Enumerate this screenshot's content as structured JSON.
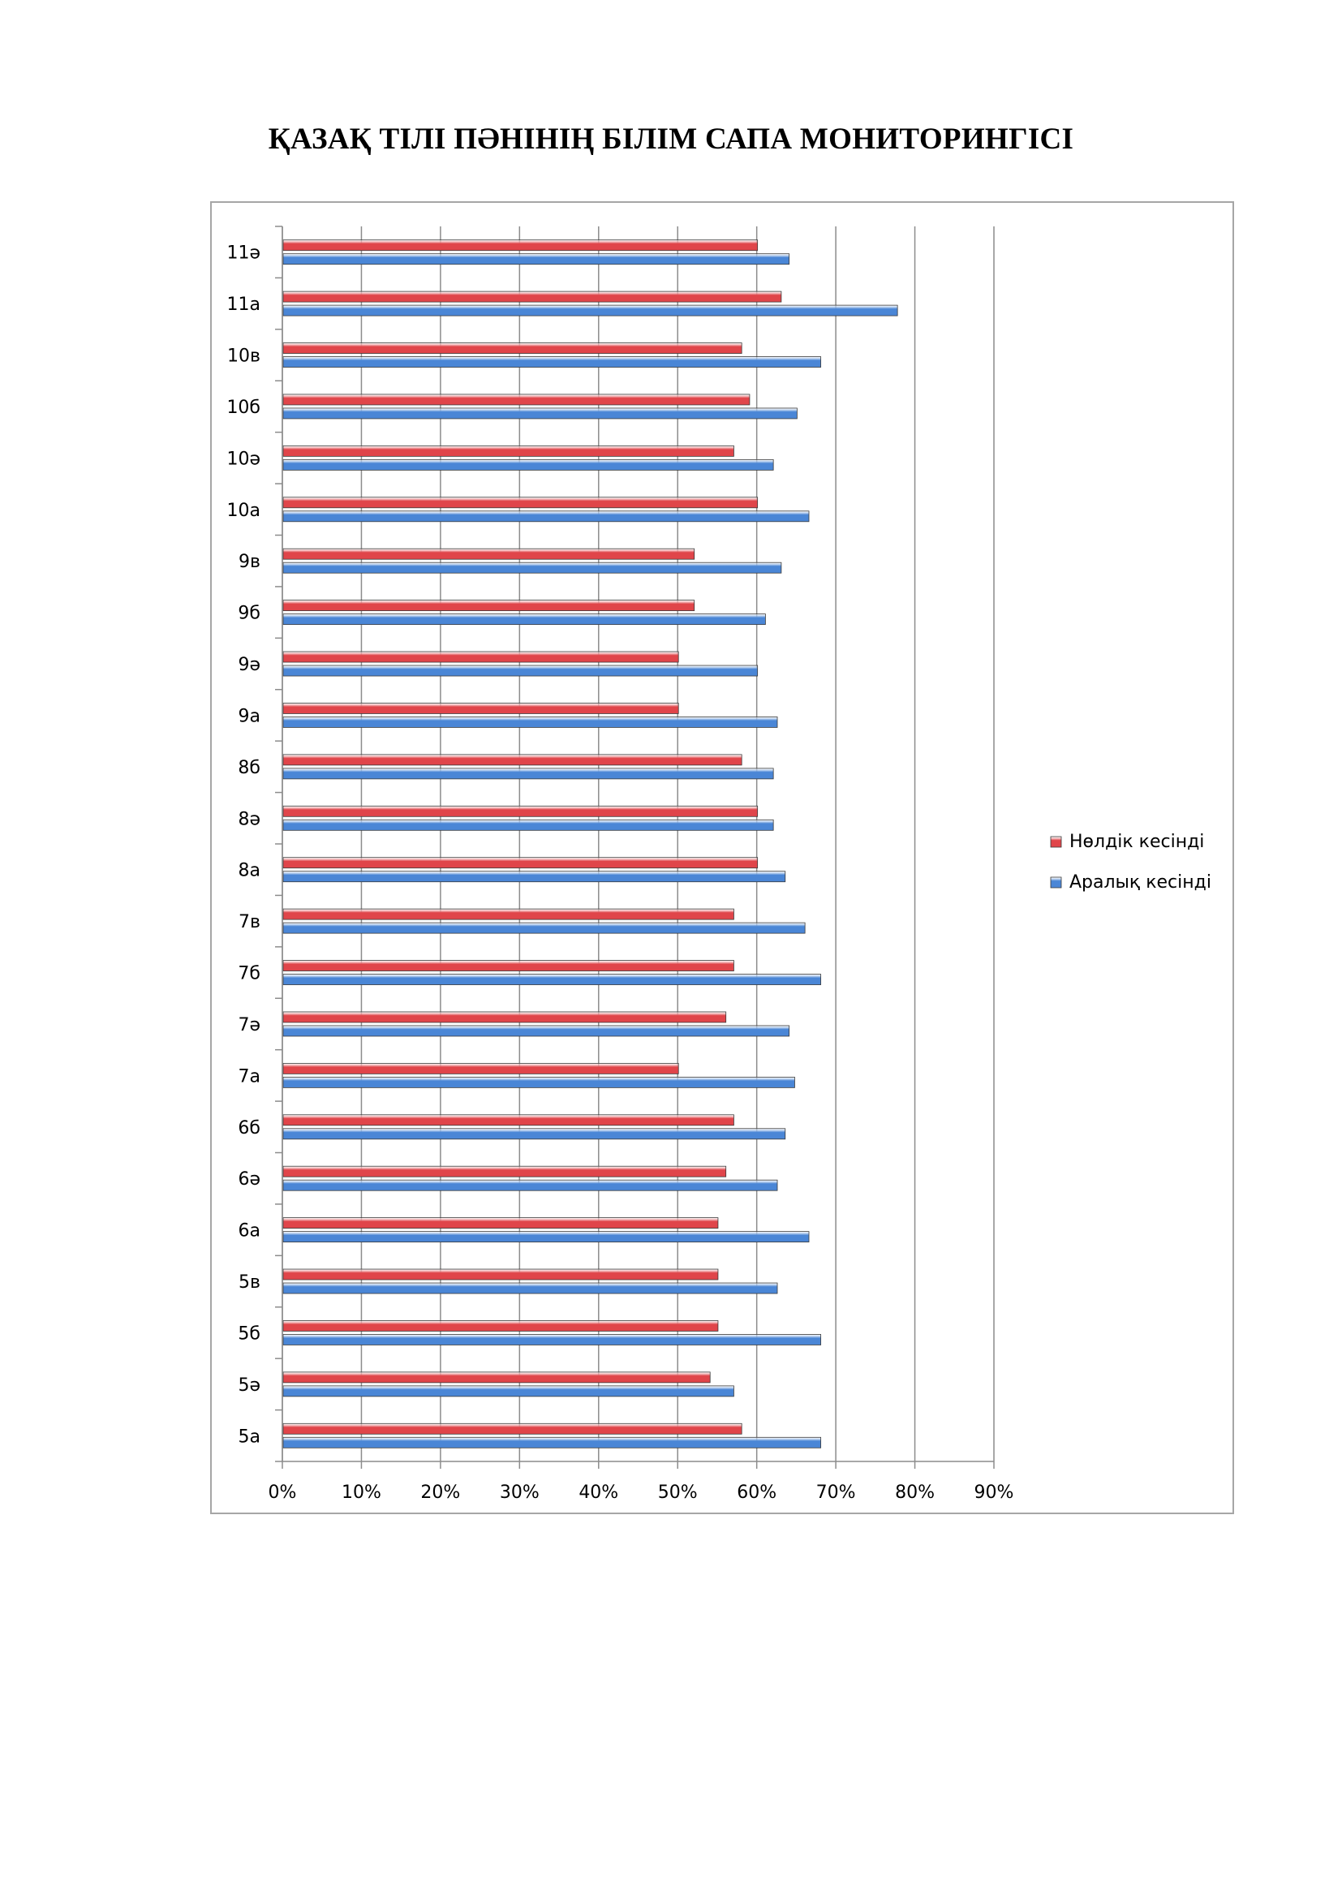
{
  "page": {
    "title": "ҚАЗАҚ ТІЛІ ПӘНІНІҢ БІЛІМ САПА МОНИТОРИНГІСІ"
  },
  "chart_data": {
    "type": "bar",
    "orientation": "horizontal",
    "categories": [
      "5а",
      "5ә",
      "5б",
      "5в",
      "6а",
      "6ә",
      "6б",
      "7а",
      "7ә",
      "7б",
      "7в",
      "8а",
      "8ә",
      "8б",
      "9а",
      "9ә",
      "9б",
      "9в",
      "10а",
      "10ә",
      "10б",
      "10в",
      "11а",
      "11ә"
    ],
    "series": [
      {
        "name": "Нөлдік кесінді",
        "color": "#e0454a",
        "values": [
          58,
          54,
          55,
          55,
          55,
          56,
          57,
          50,
          56,
          57,
          57,
          60,
          60,
          58,
          50,
          50,
          52,
          52,
          60,
          57,
          59,
          58,
          63,
          60
        ]
      },
      {
        "name": "Аралық кесінді",
        "color": "#4a86d6",
        "values": [
          68,
          57,
          68,
          62.5,
          66.5,
          62.5,
          63.5,
          64.7,
          64,
          68,
          66,
          63.5,
          62,
          62,
          62.5,
          60,
          61,
          63,
          66.5,
          62,
          65,
          68,
          77.7,
          64
        ]
      }
    ],
    "xlim": [
      0,
      90
    ],
    "x_ticks": [
      "0%",
      "10%",
      "20%",
      "30%",
      "40%",
      "50%",
      "60%",
      "70%",
      "80%",
      "90%"
    ],
    "grid": "vertical",
    "legend_position": "right",
    "category_order": "bottom-to-top"
  }
}
